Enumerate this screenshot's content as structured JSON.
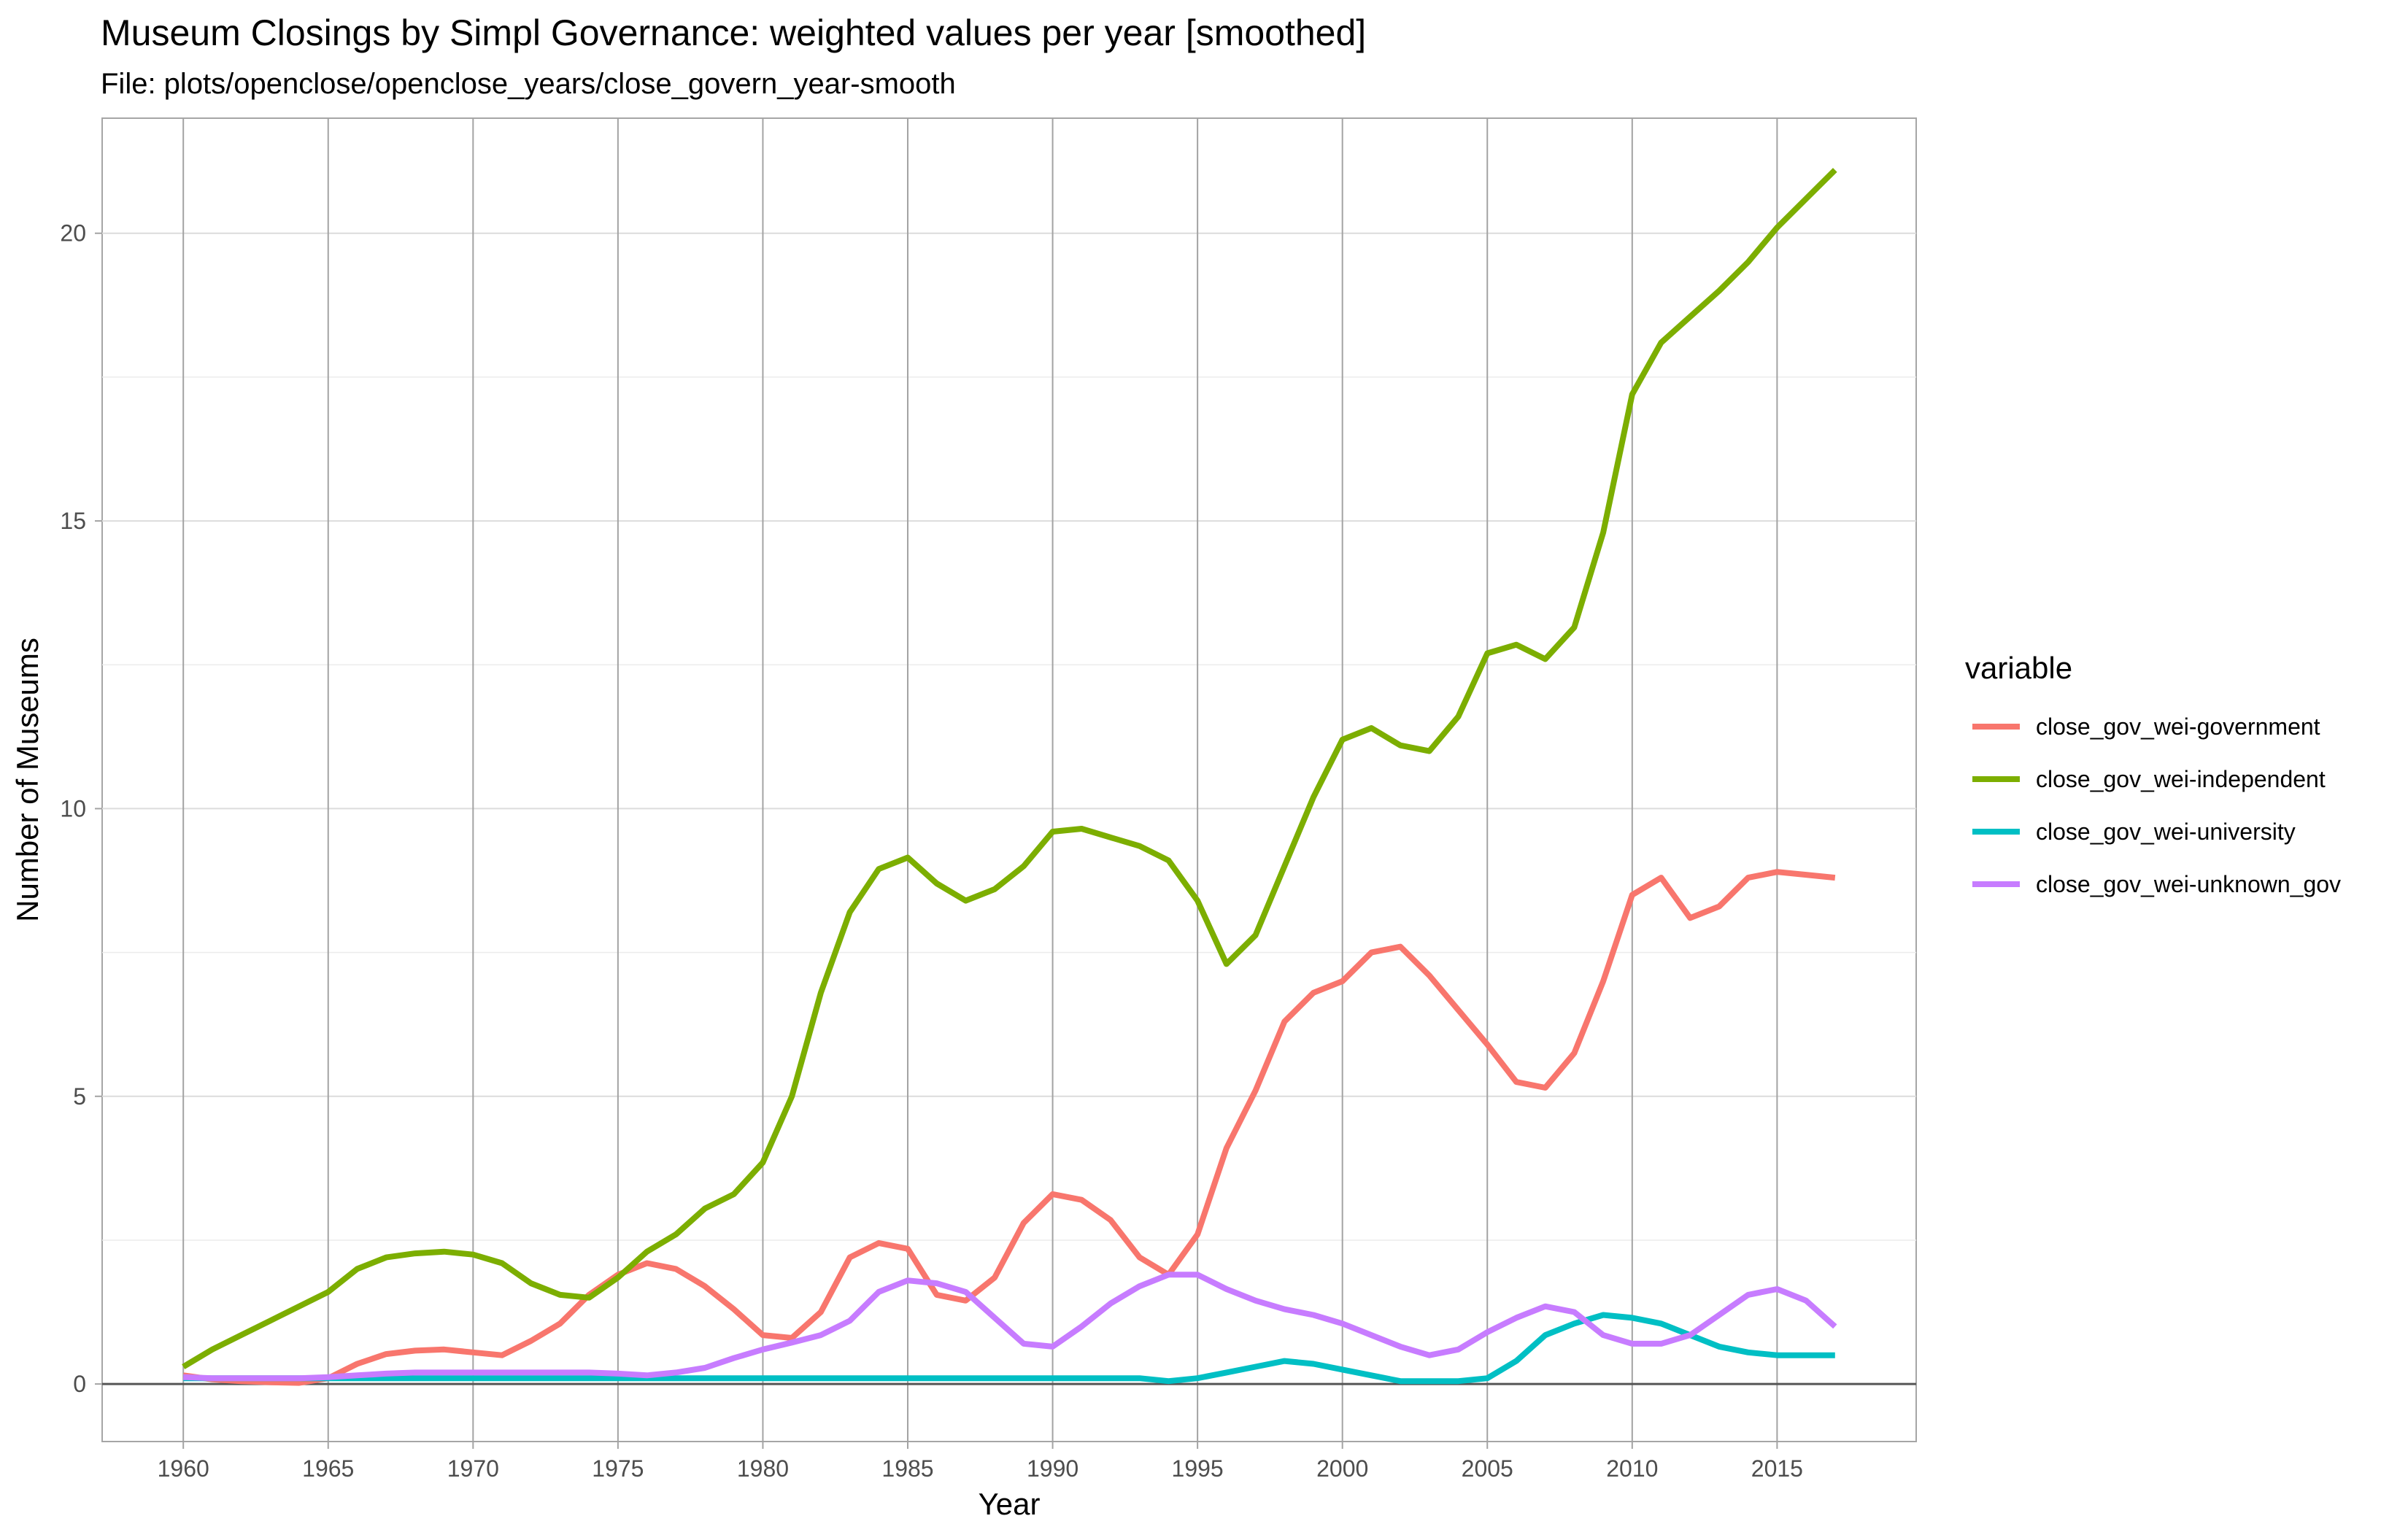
{
  "chart_data": {
    "type": "line",
    "title": "Museum Closings by Simpl Governance: weighted values per year [smoothed]",
    "subtitle": "File: plots/openclose/openclose_years/close_govern_year-smooth",
    "xlabel": "Year",
    "ylabel": "Number of Museums",
    "xlim": [
      1957.2,
      2019.8
    ],
    "ylim": [
      -1.0,
      22.0
    ],
    "x_ticks": [
      1960,
      1965,
      1970,
      1975,
      1980,
      1985,
      1990,
      1995,
      2000,
      2005,
      2010,
      2015
    ],
    "x_tick_labels": [
      "1960",
      "1965",
      "1970",
      "1975",
      "1980",
      "1985",
      "1990",
      "1995",
      "2000",
      "2005",
      "2010",
      "2015"
    ],
    "y_ticks": [
      0,
      5,
      10,
      15,
      20
    ],
    "y_tick_labels": [
      "0",
      "5",
      "10",
      "15",
      "20"
    ],
    "grid": true,
    "legend": {
      "title": "variable",
      "position": "right"
    },
    "x": [
      1960,
      1961,
      1962,
      1963,
      1964,
      1965,
      1966,
      1967,
      1968,
      1969,
      1970,
      1971,
      1972,
      1973,
      1974,
      1975,
      1976,
      1977,
      1978,
      1979,
      1980,
      1981,
      1982,
      1983,
      1984,
      1985,
      1986,
      1987,
      1988,
      1989,
      1990,
      1991,
      1992,
      1993,
      1994,
      1995,
      1996,
      1997,
      1998,
      1999,
      2000,
      2001,
      2002,
      2003,
      2004,
      2005,
      2006,
      2007,
      2008,
      2009,
      2010,
      2011,
      2012,
      2013,
      2014,
      2015,
      2016,
      2017
    ],
    "series": [
      {
        "name": "close_gov_wei-government",
        "color": "#F8766D",
        "values": [
          0.15,
          0.08,
          0.05,
          0.03,
          0.02,
          0.1,
          0.35,
          0.52,
          0.58,
          0.6,
          0.55,
          0.5,
          0.75,
          1.05,
          1.55,
          1.9,
          2.1,
          2.0,
          1.7,
          1.3,
          0.85,
          0.8,
          1.25,
          2.2,
          2.45,
          2.35,
          1.55,
          1.45,
          1.85,
          2.8,
          3.3,
          3.2,
          2.85,
          2.2,
          1.9,
          2.6,
          4.1,
          5.1,
          6.3,
          6.8,
          7.0,
          7.5,
          7.6,
          7.1,
          6.5,
          5.9,
          5.25,
          5.15,
          5.75,
          7.0,
          8.5,
          8.8,
          8.1,
          8.3,
          8.8,
          8.9,
          8.85,
          8.8
        ]
      },
      {
        "name": "close_gov_wei-independent",
        "color": "#7CAE00",
        "values": [
          0.3,
          0.6,
          0.85,
          1.1,
          1.35,
          1.6,
          2.0,
          2.2,
          2.27,
          2.3,
          2.25,
          2.1,
          1.75,
          1.55,
          1.5,
          1.85,
          2.3,
          2.6,
          3.05,
          3.3,
          3.85,
          5.0,
          6.8,
          8.2,
          8.95,
          9.15,
          8.7,
          8.4,
          8.6,
          9.0,
          9.6,
          9.65,
          9.5,
          9.35,
          9.1,
          8.4,
          7.3,
          7.8,
          9.0,
          10.2,
          11.2,
          11.4,
          11.1,
          11.0,
          11.6,
          12.7,
          12.85,
          12.6,
          13.15,
          14.8,
          17.2,
          18.1,
          18.55,
          19.0,
          19.5,
          20.1,
          20.6,
          21.1
        ]
      },
      {
        "name": "close_gov_wei-university",
        "color": "#00BFC4",
        "values": [
          0.1,
          0.1,
          0.1,
          0.1,
          0.1,
          0.1,
          0.1,
          0.1,
          0.1,
          0.1,
          0.1,
          0.1,
          0.1,
          0.1,
          0.1,
          0.1,
          0.1,
          0.1,
          0.1,
          0.1,
          0.1,
          0.1,
          0.1,
          0.1,
          0.1,
          0.1,
          0.1,
          0.1,
          0.1,
          0.1,
          0.1,
          0.1,
          0.1,
          0.1,
          0.05,
          0.1,
          0.2,
          0.3,
          0.4,
          0.35,
          0.25,
          0.15,
          0.05,
          0.05,
          0.05,
          0.1,
          0.4,
          0.85,
          1.05,
          1.2,
          1.15,
          1.05,
          0.85,
          0.65,
          0.55,
          0.5,
          0.5,
          0.5
        ]
      },
      {
        "name": "close_gov_wei-unknown_gov",
        "color": "#C77CFF",
        "values": [
          0.12,
          0.1,
          0.1,
          0.1,
          0.1,
          0.12,
          0.15,
          0.18,
          0.2,
          0.2,
          0.2,
          0.2,
          0.2,
          0.2,
          0.2,
          0.18,
          0.15,
          0.2,
          0.28,
          0.45,
          0.6,
          0.72,
          0.85,
          1.1,
          1.6,
          1.8,
          1.75,
          1.6,
          1.15,
          0.7,
          0.65,
          1.0,
          1.4,
          1.7,
          1.9,
          1.9,
          1.65,
          1.45,
          1.3,
          1.2,
          1.05,
          0.85,
          0.65,
          0.5,
          0.6,
          0.9,
          1.15,
          1.35,
          1.25,
          0.85,
          0.7,
          0.7,
          0.85,
          1.2,
          1.55,
          1.65,
          1.45,
          1.0
        ]
      }
    ]
  }
}
